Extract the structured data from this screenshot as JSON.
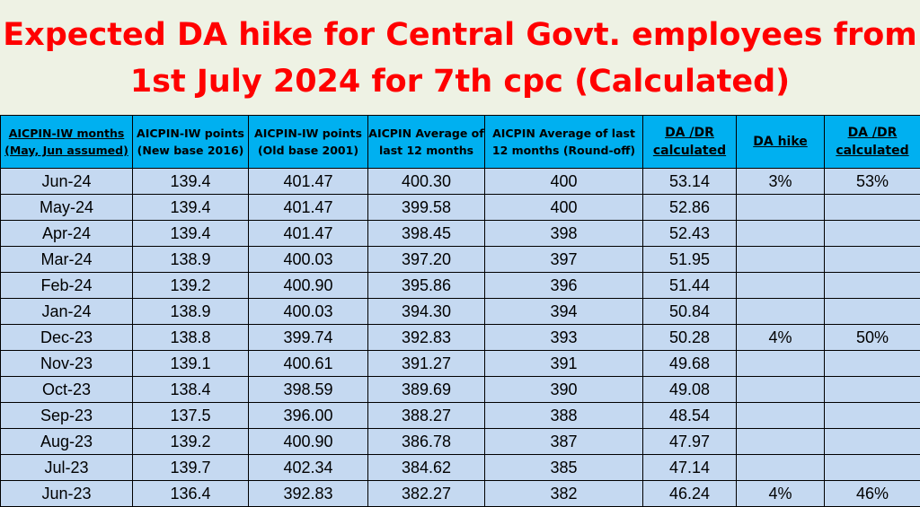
{
  "title": {
    "line1": "Expected DA hike for Central Govt. employees from",
    "line2": "1st July 2024 for 7th cpc (Calculated)"
  },
  "table": {
    "headers": [
      "AICPIN-IW months (May, Jun assumed)",
      "AICPIN-IW points (New base 2016)",
      "AICPIN-IW points (Old base 2001)",
      "AICPIN Average of last 12 months",
      "AICPIN Average of last 12 months (Round-off)",
      "DA /DR calculated",
      "DA hike",
      "DA /DR calculated"
    ],
    "rows": [
      [
        "Jun-24",
        "139.4",
        "401.47",
        "400.30",
        "400",
        "53.14",
        "3%",
        "53%"
      ],
      [
        "May-24",
        "139.4",
        "401.47",
        "399.58",
        "400",
        "52.86",
        "",
        ""
      ],
      [
        "Apr-24",
        "139.4",
        "401.47",
        "398.45",
        "398",
        "52.43",
        "",
        ""
      ],
      [
        "Mar-24",
        "138.9",
        "400.03",
        "397.20",
        "397",
        "51.95",
        "",
        ""
      ],
      [
        "Feb-24",
        "139.2",
        "400.90",
        "395.86",
        "396",
        "51.44",
        "",
        ""
      ],
      [
        "Jan-24",
        "138.9",
        "400.03",
        "394.30",
        "394",
        "50.84",
        "",
        ""
      ],
      [
        "Dec-23",
        "138.8",
        "399.74",
        "392.83",
        "393",
        "50.28",
        "4%",
        "50%"
      ],
      [
        "Nov-23",
        "139.1",
        "400.61",
        "391.27",
        "391",
        "49.68",
        "",
        ""
      ],
      [
        "Oct-23",
        "138.4",
        "398.59",
        "389.69",
        "390",
        "49.08",
        "",
        ""
      ],
      [
        "Sep-23",
        "137.5",
        "396.00",
        "388.27",
        "388",
        "48.54",
        "",
        ""
      ],
      [
        "Aug-23",
        "139.2",
        "400.90",
        "386.78",
        "387",
        "47.97",
        "",
        ""
      ],
      [
        "Jul-23",
        "139.7",
        "402.34",
        "384.62",
        "385",
        "47.14",
        "",
        ""
      ],
      [
        "Jun-23",
        "136.4",
        "392.83",
        "382.27",
        "382",
        "46.24",
        "4%",
        "46%"
      ]
    ]
  },
  "colors": {
    "title_text": "#ff0000",
    "header_bg": "#00b0f0",
    "cell_bg": "#c5d9f1",
    "page_bg": "#eef2e4"
  }
}
